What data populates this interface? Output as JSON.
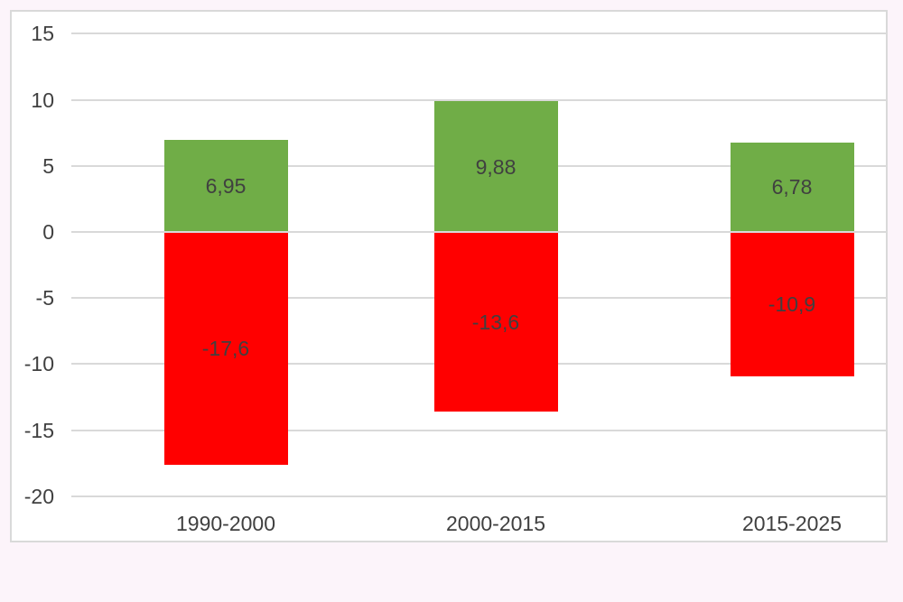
{
  "page": {
    "background_color": "#fcf4fa"
  },
  "chart_data": {
    "type": "bar",
    "subtype": "stacked-positive-negative-column",
    "title": "",
    "xlabel": "",
    "ylabel": "",
    "categories": [
      "1990-2000",
      "2000-2015",
      "2015-2025"
    ],
    "series": [
      {
        "name": "positive-change",
        "color": "#70ad47",
        "values": [
          6.95,
          9.88,
          6.78
        ],
        "labels": [
          "6,95",
          "9,88",
          "6,78"
        ]
      },
      {
        "name": "negative-change",
        "color": "#ff0000",
        "values": [
          -17.6,
          -13.6,
          -10.9
        ],
        "labels": [
          "-17,6",
          "-13,6",
          "-10,9"
        ]
      }
    ],
    "ylim": [
      -20,
      15
    ],
    "yticks": [
      15,
      10,
      5,
      0,
      -5,
      -10,
      -15,
      -20
    ],
    "grid": true,
    "legend": false,
    "colors": {
      "plot_background": "#ffffff",
      "chart_border": "#d9d9d9",
      "gridline": "#d9d9d9",
      "axis_text": "#404040",
      "data_label": "#404040"
    }
  }
}
